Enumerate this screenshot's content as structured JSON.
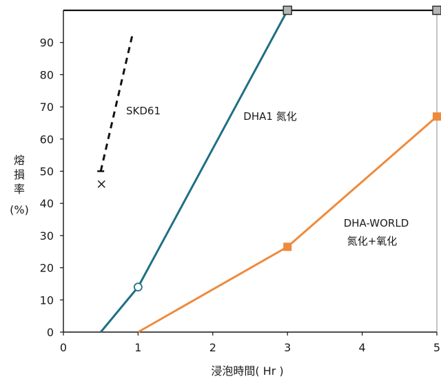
{
  "chart_data": {
    "type": "line",
    "xlabel": "浸泡時間( Hr )",
    "ylabel_lines": [
      "熔",
      "損",
      "率",
      "(%)"
    ],
    "xlim": [
      0,
      5
    ],
    "ylim": [
      0,
      100
    ],
    "x_ticks": [
      0,
      1,
      2,
      3,
      4,
      5
    ],
    "y_ticks": [
      0,
      10,
      20,
      30,
      40,
      50,
      60,
      70,
      80,
      90
    ],
    "grid": false,
    "colors": {
      "teal": "#1f6f84",
      "orange": "#ee8a3c",
      "black": "#111111",
      "gray": "#b5b5b5"
    },
    "series": [
      {
        "name": "DHA1 氮化",
        "color": "#1f6f84",
        "style": "solid",
        "marker_start": "none",
        "points": [
          [
            0.5,
            0
          ],
          [
            1,
            14
          ],
          [
            3,
            100
          ]
        ],
        "circle_marker": [
          1,
          14
        ],
        "square_marker": [
          3,
          100
        ]
      },
      {
        "name_lines": [
          "DHA-WORLD",
          "氮化+氧化"
        ],
        "color": "#ee8a3c",
        "style": "solid",
        "points": [
          [
            1,
            0
          ],
          [
            3,
            26.5
          ],
          [
            5,
            67
          ]
        ],
        "square_markers": [
          [
            3,
            26.5
          ],
          [
            5,
            67
          ]
        ]
      },
      {
        "name": "SKD61",
        "color": "#111111",
        "style": "dashed",
        "points": [
          [
            0.5,
            50
          ],
          [
            0.92,
            92
          ]
        ],
        "cross_marker": [
          0.51,
          46
        ]
      }
    ],
    "top_line": {
      "y": 100,
      "color": "#111111",
      "end_markers": [
        3,
        5
      ]
    }
  }
}
